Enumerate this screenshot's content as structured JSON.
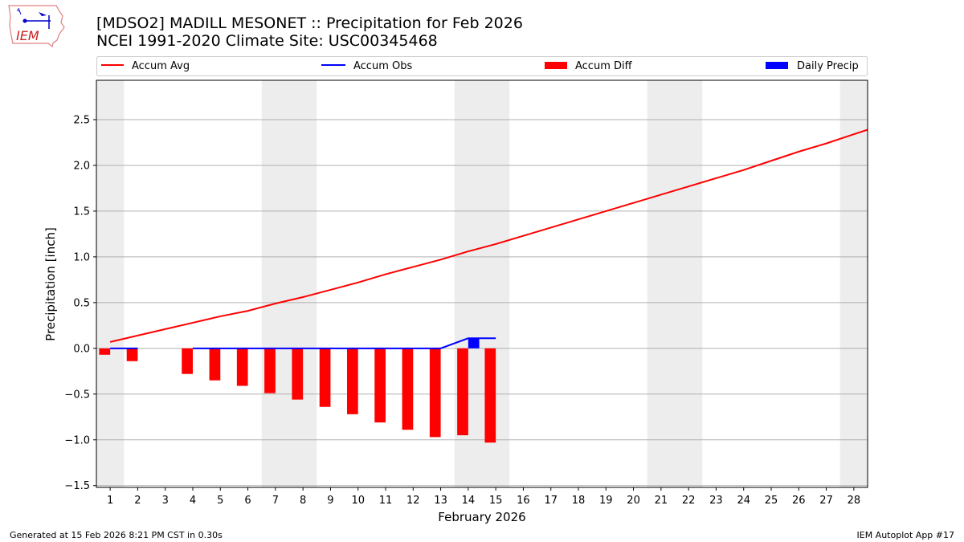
{
  "header": {
    "title": "[MDSO2] MADILL MESONET :: Precipitation for Feb 2026",
    "subtitle": "NCEI 1991-2020 Climate Site: USC00345468",
    "logo_text": "IEM"
  },
  "footer": {
    "generated": "Generated at 15 Feb 2026 8:21 PM CST in 0.30s",
    "app": "IEM Autoplot App #17"
  },
  "chart_data": {
    "type": "bar",
    "xlabel": "February 2026",
    "ylabel": "Precipitation [inch]",
    "xlim": [
      0.5,
      28.5
    ],
    "ylim": [
      -1.52,
      2.93
    ],
    "grid": true,
    "legend_placement": "top",
    "x_ticks": [
      1,
      2,
      3,
      4,
      5,
      6,
      7,
      8,
      9,
      10,
      11,
      12,
      13,
      14,
      15,
      16,
      17,
      18,
      19,
      20,
      21,
      22,
      23,
      24,
      25,
      26,
      27,
      28
    ],
    "y_ticks": [
      -1.5,
      -1.0,
      -0.5,
      0.0,
      0.5,
      1.0,
      1.5,
      2.0,
      2.5
    ],
    "y_tick_labels": [
      "−1.5",
      "−1.0",
      "−0.5",
      "0.0",
      "0.5",
      "1.0",
      "1.5",
      "2.0",
      "2.5"
    ],
    "weekend_days": [
      1,
      7,
      8,
      14,
      15,
      21,
      22,
      28
    ],
    "weekend_color": "#ededed",
    "series": [
      {
        "name": "Accum Avg",
        "kind": "line",
        "color": "#ff0000",
        "x": [
          1,
          2,
          3,
          4,
          5,
          6,
          7,
          8,
          9,
          10,
          11,
          12,
          13,
          14,
          15,
          16,
          17,
          18,
          19,
          20,
          21,
          22,
          23,
          24,
          25,
          26,
          27,
          28,
          29
        ],
        "values": [
          0.07,
          0.14,
          0.21,
          0.28,
          0.35,
          0.41,
          0.49,
          0.56,
          0.64,
          0.72,
          0.81,
          0.89,
          0.97,
          1.06,
          1.14,
          1.23,
          1.32,
          1.41,
          1.5,
          1.59,
          1.68,
          1.77,
          1.86,
          1.95,
          2.05,
          2.15,
          2.24,
          2.34,
          2.44
        ]
      },
      {
        "name": "Accum Obs",
        "kind": "line",
        "color": "#0000ff",
        "x": [
          1,
          2,
          3,
          4,
          5,
          6,
          7,
          8,
          9,
          10,
          11,
          12,
          13,
          14,
          15
        ],
        "values": [
          0,
          0,
          null,
          0,
          0,
          0,
          0,
          0,
          0,
          0,
          0,
          0,
          0,
          0.11,
          0.11
        ]
      },
      {
        "name": "Accum Diff",
        "kind": "bar",
        "color": "#ff0000",
        "x": [
          1,
          2,
          4,
          5,
          6,
          7,
          8,
          9,
          10,
          11,
          12,
          13,
          14,
          15
        ],
        "values": [
          -0.07,
          -0.14,
          -0.28,
          -0.35,
          -0.41,
          -0.49,
          -0.56,
          -0.64,
          -0.72,
          -0.81,
          -0.89,
          -0.97,
          -0.95,
          -1.03
        ]
      },
      {
        "name": "Daily Precip",
        "kind": "bar",
        "color": "#0000ff",
        "x": [
          14
        ],
        "values": [
          0.11
        ]
      }
    ]
  }
}
